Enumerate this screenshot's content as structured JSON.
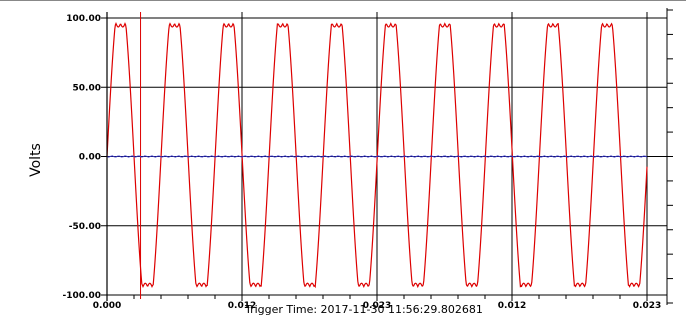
{
  "chart_data": {
    "type": "line",
    "ylabel": "Volts",
    "ylim": [
      -100,
      100
    ],
    "y_ticks": [
      "100.00",
      "50.00",
      "0.00",
      "-50.00",
      "-100.00"
    ],
    "y_tick_values": [
      100,
      50,
      0,
      -50,
      -100
    ],
    "x_range": [
      0.0,
      0.0333
    ],
    "x_ticks": [
      "0.000",
      "0.012",
      "0.023",
      "0.012",
      "0.023"
    ],
    "grid": true,
    "annotation": "Trigger Time: 2017-11-30 11:56:29.802681",
    "series": [
      {
        "color": "#dd0000",
        "shape": "clipped-sine",
        "frequency_hz": 300,
        "amplitude": 117,
        "peak": 96,
        "trough": -94,
        "start": 0.0
      },
      {
        "color": "#3333cc",
        "shape": "flat",
        "values_at": 0.0
      }
    ],
    "cursor_color": "#dd0000",
    "cursor_x": 0.00065
  },
  "colors": {
    "grid": "#000000",
    "plot_bg": "#ffffff",
    "frame": "#888888"
  }
}
